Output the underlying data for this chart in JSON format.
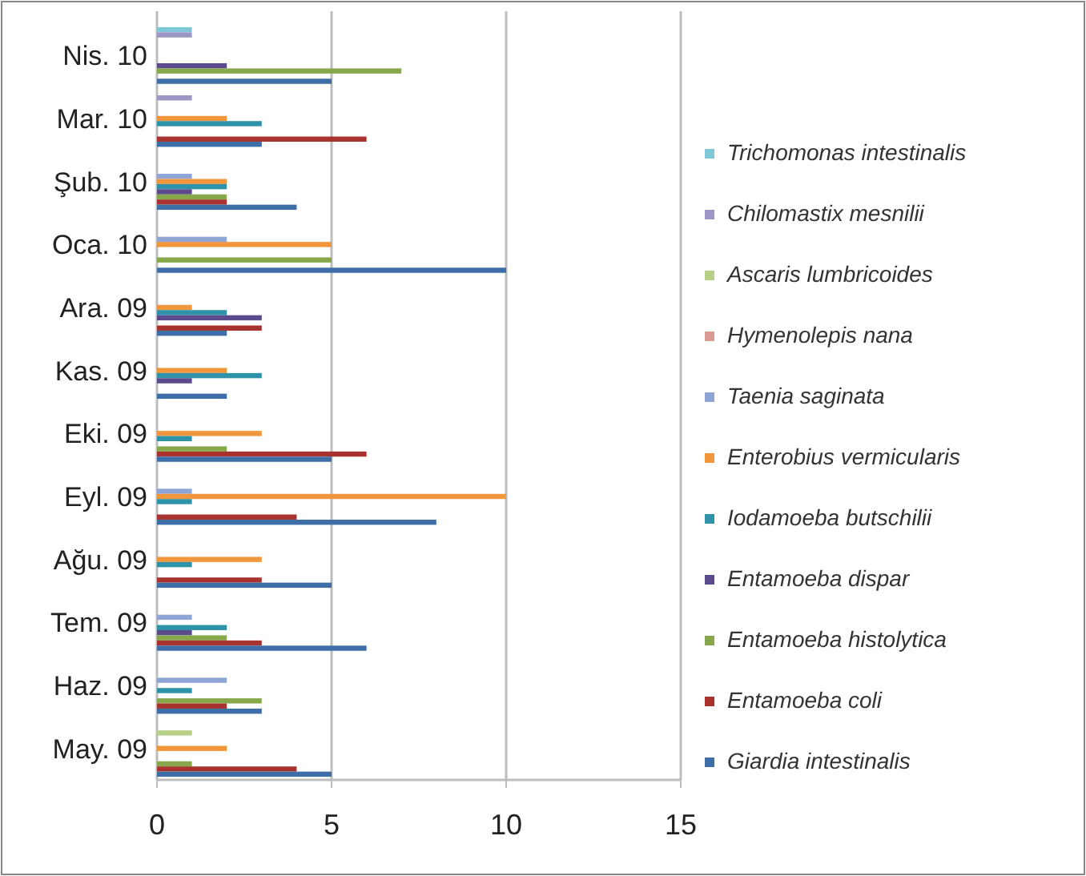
{
  "chart_data": {
    "type": "bar",
    "orientation": "horizontal",
    "categories": [
      "Nis. 10",
      "Mar. 10",
      "Şub. 10",
      "Oca. 10",
      "Ara. 09",
      "Kas. 09",
      "Eki. 09",
      "Eyl. 09",
      "Ağu. 09",
      "Tem. 09",
      "Haz. 09",
      "May. 09"
    ],
    "series": [
      {
        "name": "Trichomonas intestinalis",
        "color": "#7fc6d6",
        "values": [
          1,
          0,
          0,
          0,
          0,
          0,
          0,
          0,
          0,
          0,
          0,
          0
        ]
      },
      {
        "name": "Chilomastix mesnilii",
        "color": "#9c97c4",
        "values": [
          1,
          1,
          0,
          0,
          0,
          0,
          0,
          0,
          0,
          0,
          0,
          0
        ]
      },
      {
        "name": "Ascaris lumbricoides",
        "color": "#b7cf86",
        "values": [
          0,
          0,
          0,
          0,
          0,
          0,
          0,
          0,
          0,
          0,
          0,
          1
        ]
      },
      {
        "name": "Hymenolepis nana",
        "color": "#d99a94",
        "values": [
          0,
          0,
          0,
          0,
          0,
          0,
          0,
          0,
          0,
          0,
          0,
          0
        ]
      },
      {
        "name": "Taenia saginata",
        "color": "#8ea5d6",
        "values": [
          0,
          0,
          1,
          2,
          0,
          0,
          0,
          1,
          0,
          1,
          2,
          0
        ]
      },
      {
        "name": "Enterobius vermicularis",
        "color": "#f0963c",
        "values": [
          0,
          2,
          2,
          5,
          1,
          2,
          3,
          10,
          3,
          0,
          0,
          2
        ]
      },
      {
        "name": "Iodamoeba butschilii",
        "color": "#2e92a8",
        "values": [
          0,
          3,
          2,
          0,
          2,
          3,
          1,
          1,
          1,
          2,
          1,
          0
        ]
      },
      {
        "name": "Entamoeba dispar",
        "color": "#5b4a8e",
        "values": [
          2,
          0,
          1,
          0,
          3,
          1,
          0,
          0,
          0,
          1,
          0,
          0
        ]
      },
      {
        "name": "Entamoeba histolytica",
        "color": "#86a84a",
        "values": [
          7,
          0,
          2,
          5,
          0,
          0,
          2,
          0,
          0,
          2,
          3,
          1
        ]
      },
      {
        "name": "Entamoeba coli",
        "color": "#a8322e",
        "values": [
          0,
          6,
          2,
          0,
          3,
          0,
          6,
          4,
          3,
          3,
          2,
          4
        ]
      },
      {
        "name": "Giardia intestinalis",
        "color": "#3d6ea8",
        "values": [
          5,
          3,
          4,
          10,
          2,
          2,
          5,
          8,
          5,
          6,
          3,
          5
        ]
      }
    ],
    "xlim": [
      0,
      15
    ],
    "xticks": [
      0,
      5,
      10,
      15
    ],
    "grid": "x",
    "legend": "right"
  }
}
